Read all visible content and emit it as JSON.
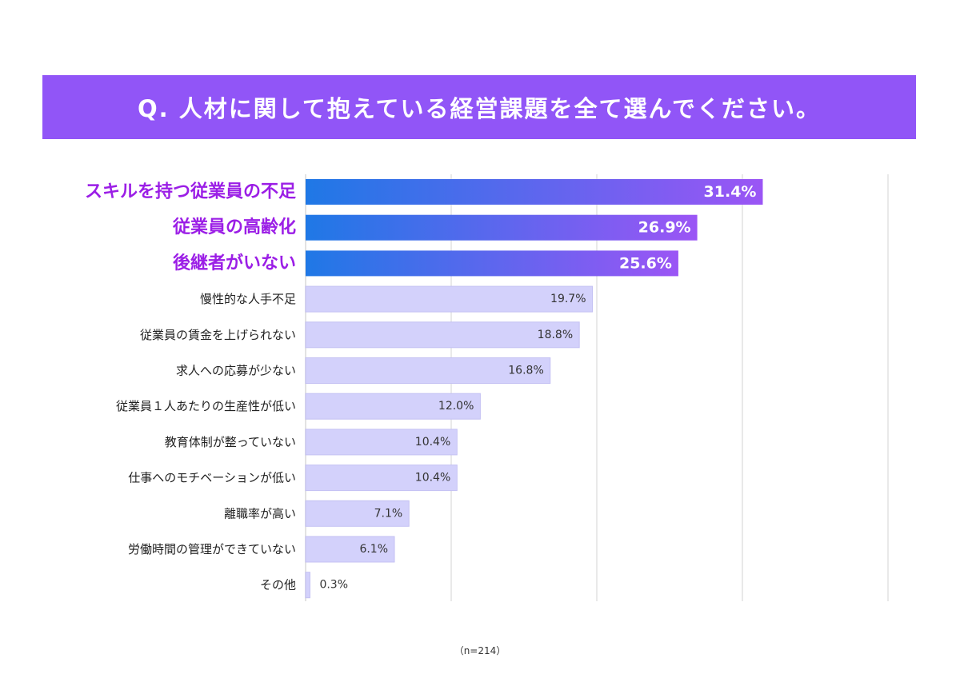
{
  "title": "Q. 人材に関して抱えている経営課題を全て選んでください。",
  "note": "（n=214）",
  "colors": {
    "title_band": "#9155f7",
    "highlight_label": "#9b1ee6",
    "highlight_bar_start": "#1f78e6",
    "highlight_bar_end": "#9b55f5",
    "bar": "#d3d1fb",
    "bar_border": "#c4c1f3",
    "grid": "#e2e2e2",
    "label": "#222222"
  },
  "chart_data": {
    "type": "bar",
    "orientation": "horizontal",
    "categories": [
      "スキルを持つ従業員の不足",
      "従業員の高齢化",
      "後継者がいない",
      "慢性的な人手不足",
      "従業員の賃金を上げられない",
      "求人への応募が少ない",
      "従業員１人あたりの生産性が低い",
      "教育体制が整っていない",
      "仕事へのモチベーションが低い",
      "離職率が高い",
      "労働時間の管理ができていない",
      "その他"
    ],
    "values": [
      31.4,
      26.9,
      25.6,
      19.7,
      18.8,
      16.8,
      12.0,
      10.4,
      10.4,
      7.1,
      6.1,
      0.3
    ],
    "value_labels": [
      "31.4%",
      "26.9%",
      "25.6%",
      "19.7%",
      "18.8%",
      "16.8%",
      "12.0%",
      "10.4%",
      "10.4%",
      "7.1%",
      "6.1%",
      "0.3%"
    ],
    "highlighted_count": 3,
    "xlim": [
      0,
      40
    ],
    "grid_step": 10,
    "legend": "none"
  }
}
